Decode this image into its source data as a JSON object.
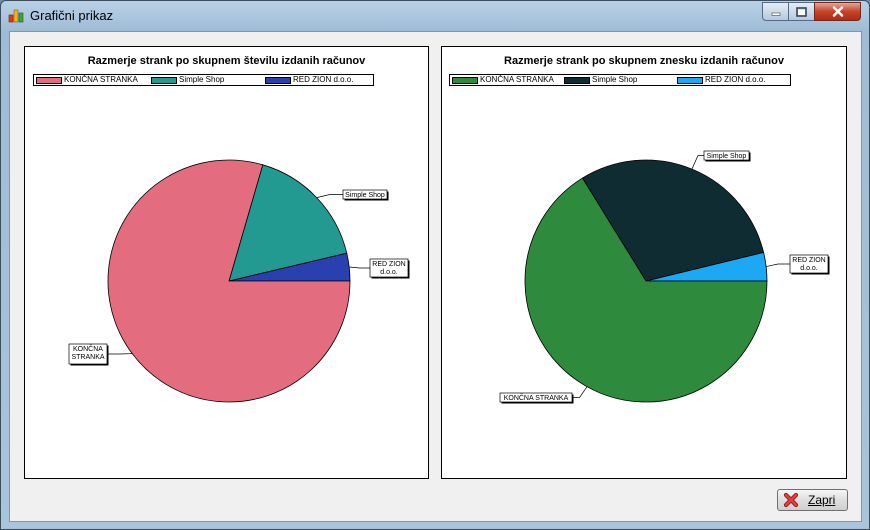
{
  "window": {
    "title": "Grafični prikaz"
  },
  "charts": [
    {
      "title": "Razmerje strank po skupnem številu izdanih računov",
      "legend": [
        "KONČNA STRANKA",
        "Simple Shop",
        "RED ZION d.o.o."
      ]
    },
    {
      "title": "Razmerje strank po skupnem znesku izdanih računov",
      "legend": [
        "KONČNA STRANKA",
        "Simple Shop",
        "RED ZION d.o.o."
      ]
    }
  ],
  "chart_data": [
    {
      "type": "pie",
      "title": "Razmerje strank po skupnem številu izdanih računov",
      "labels": [
        "KONČNA STRANKA",
        "Simple Shop",
        "RED ZION d.o.o."
      ],
      "values": [
        79.5,
        16.8,
        3.7
      ],
      "colors": [
        "#e36d7e",
        "#229a91",
        "#2a3fb0"
      ],
      "legend_position": "top"
    },
    {
      "type": "pie",
      "title": "Razmerje strank po skupnem znesku izdanih računov",
      "labels": [
        "KONČNA STRANKA",
        "Simple Shop",
        "RED ZION d.o.o."
      ],
      "values": [
        66.2,
        30.0,
        3.8
      ],
      "colors": [
        "#2e8b3d",
        "#102c33",
        "#1ca8f5"
      ],
      "legend_position": "top"
    }
  ],
  "footer": {
    "close_label": "Zapri"
  },
  "colors": {
    "slice_outline": "#000000",
    "panel_background": "#ffffff",
    "dialog_background": "#f0f0f0"
  }
}
